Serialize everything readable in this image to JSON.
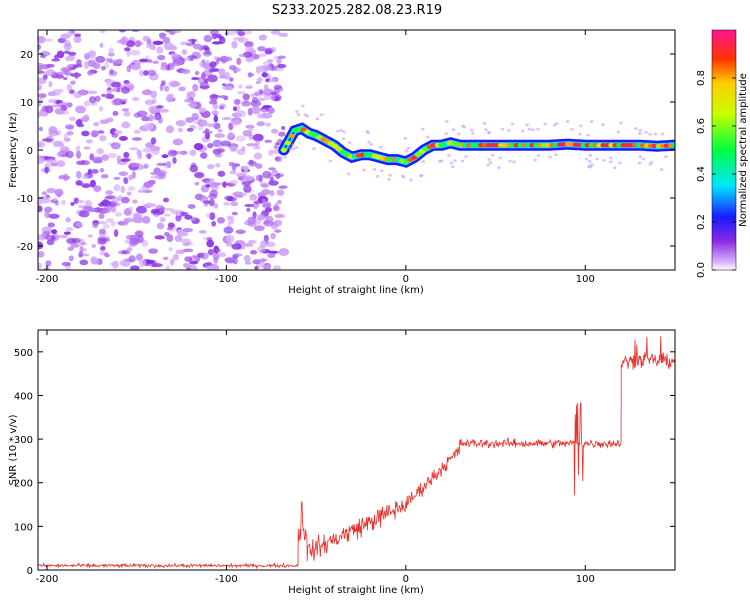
{
  "title": "S233.2025.282.08.23.R19",
  "chart_data": [
    {
      "type": "heatmap",
      "name": "spectrogram",
      "xlabel": "Height of straight line (km)",
      "ylabel": "Frequency (Hz)",
      "xlim": [
        -205,
        150
      ],
      "ylim": [
        -25,
        25
      ],
      "xticks": [
        -200,
        -100,
        0,
        100
      ],
      "yticks": [
        -20,
        -10,
        0,
        10,
        20
      ],
      "noise_region_x": [
        -205,
        -68
      ],
      "ridge": {
        "x": [
          -68,
          -65,
          -62,
          -58,
          -54,
          -50,
          -45,
          -40,
          -35,
          -30,
          -25,
          -20,
          -15,
          -10,
          -5,
          0,
          5,
          10,
          15,
          20,
          25,
          30,
          35,
          40,
          60,
          80,
          90,
          100,
          110,
          120,
          130,
          140,
          150
        ],
        "freq_hz": [
          0,
          2,
          4,
          4.5,
          3.5,
          3,
          2,
          1,
          -0.5,
          -1.5,
          -1,
          -1,
          -1.5,
          -2,
          -2,
          -2.5,
          -1.5,
          0,
          1,
          1,
          1.5,
          1,
          1,
          1,
          1,
          1,
          1.2,
          1,
          1,
          1,
          1,
          0.8,
          1
        ]
      },
      "colorbar": {
        "label": "Normalized spectral amplitude",
        "range": [
          0.0,
          1.0
        ],
        "ticks": [
          "0.0",
          "0.2",
          "0.4",
          "0.6",
          "0.8"
        ]
      }
    },
    {
      "type": "line",
      "name": "snr",
      "xlabel": "Height of straight line (km)",
      "ylabel": "SNR (10 * v/v)",
      "xlim": [
        -205,
        150
      ],
      "ylim": [
        0,
        550
      ],
      "xticks": [
        -200,
        -100,
        0,
        100
      ],
      "yticks": [
        0,
        100,
        200,
        300,
        400,
        500
      ],
      "color": "#e8302a",
      "segments": [
        {
          "x_range": [
            -205,
            -60
          ],
          "level": 10,
          "noise": 6
        },
        {
          "x_range": [
            -60,
            -55
          ],
          "level": 90,
          "noise": 40,
          "spike": 170
        },
        {
          "x_range": [
            -55,
            -20
          ],
          "level_start": 40,
          "level_end": 110,
          "noise": 35
        },
        {
          "x_range": [
            -20,
            0
          ],
          "level_start": 110,
          "level_end": 150,
          "noise": 35
        },
        {
          "x_range": [
            0,
            30
          ],
          "level_start": 150,
          "level_end": 275,
          "noise": 25
        },
        {
          "x_range": [
            30,
            120
          ],
          "level": 290,
          "noise": 15,
          "spike_at": 97,
          "spike_high": 395,
          "spike_low": 160
        },
        {
          "x_range": [
            120,
            150
          ],
          "level": 480,
          "noise": 25,
          "spike": 540
        }
      ]
    }
  ]
}
